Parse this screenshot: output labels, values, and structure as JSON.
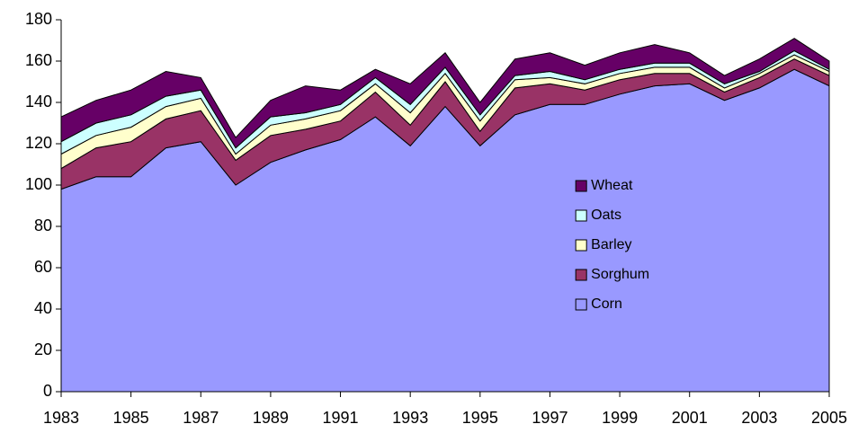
{
  "chart_data": {
    "type": "stacked_area",
    "x": [
      1983,
      1984,
      1985,
      1986,
      1987,
      1988,
      1989,
      1990,
      1991,
      1992,
      1993,
      1994,
      1995,
      1996,
      1997,
      1998,
      1999,
      2000,
      2001,
      2002,
      2003,
      2004,
      2005
    ],
    "series": [
      {
        "name": "Corn",
        "color": "#9999ff",
        "values": [
          98,
          104,
          104,
          118,
          121,
          100,
          111,
          117,
          122,
          133,
          119,
          138,
          119,
          134,
          139,
          139,
          144,
          148,
          149,
          141,
          147,
          156,
          148
        ]
      },
      {
        "name": "Sorghum",
        "color": "#993366",
        "values": [
          10,
          14,
          17,
          14,
          15,
          12,
          13,
          10,
          9,
          12,
          10,
          12,
          7,
          13,
          10,
          7,
          7,
          6,
          5,
          4,
          5,
          5,
          5
        ]
      },
      {
        "name": "Barley",
        "color": "#ffffcc",
        "values": [
          7,
          6,
          7,
          6,
          6,
          3,
          5,
          5,
          5,
          4,
          6,
          4,
          5,
          4,
          3,
          3,
          3,
          3,
          3,
          2,
          2,
          2,
          2
        ]
      },
      {
        "name": "Oats",
        "color": "#ccffff",
        "values": [
          6,
          6,
          6,
          5,
          4,
          3,
          4,
          3,
          3,
          3,
          4,
          3,
          3,
          2,
          3,
          2,
          2,
          2,
          2,
          2,
          1,
          2,
          1
        ]
      },
      {
        "name": "Wheat",
        "color": "#660066",
        "values": [
          12,
          11,
          12,
          12,
          6,
          5,
          8,
          13,
          7,
          4,
          10,
          7,
          6,
          8,
          9,
          7,
          8,
          9,
          5,
          4,
          6,
          6,
          4
        ]
      }
    ],
    "xlim": [
      1983,
      2005
    ],
    "xticks": [
      1983,
      1985,
      1987,
      1989,
      1991,
      1993,
      1995,
      1997,
      1999,
      2001,
      2003,
      2005
    ],
    "ylim": [
      0,
      180
    ],
    "yticks": [
      0,
      20,
      40,
      60,
      80,
      100,
      120,
      140,
      160,
      180
    ],
    "grid": false,
    "legend_position": "center right"
  }
}
